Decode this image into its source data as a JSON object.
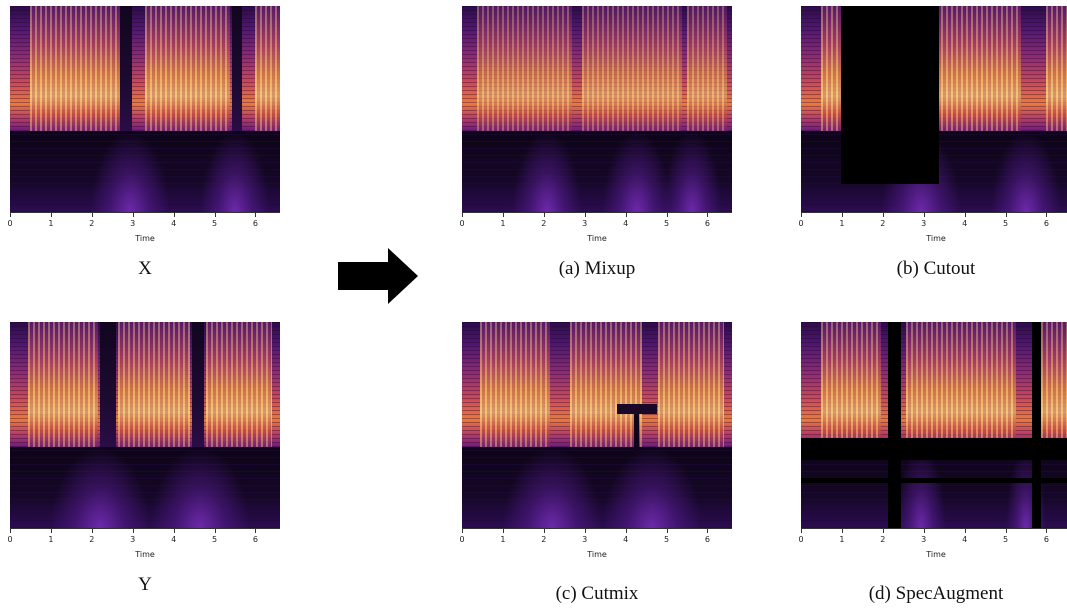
{
  "x_axis": {
    "label": "Time",
    "ticks": [
      "0",
      "1",
      "2",
      "3",
      "4",
      "5",
      "6"
    ]
  },
  "panels": [
    {
      "id": "x",
      "caption": "X",
      "mask": "none"
    },
    {
      "id": "y",
      "caption": "Y",
      "mask": "none"
    },
    {
      "id": "mixup",
      "caption": "(a) Mixup",
      "mask": "none"
    },
    {
      "id": "cutout",
      "caption": "(b) Cutout",
      "mask": "rectangle"
    },
    {
      "id": "cutmix",
      "caption": "(c) Cutmix",
      "mask": "patch"
    },
    {
      "id": "specaugment",
      "caption": "(d) SpecAugment",
      "mask": "time-and-frequency bands"
    }
  ],
  "arrow_icon": "right-arrow-icon",
  "colors": {
    "spectrogram_low": "#0c0416",
    "spectrogram_mid": "#8a2b74",
    "spectrogram_high": "#fbd27a",
    "mask": "#000000",
    "arrow": "#000000"
  }
}
